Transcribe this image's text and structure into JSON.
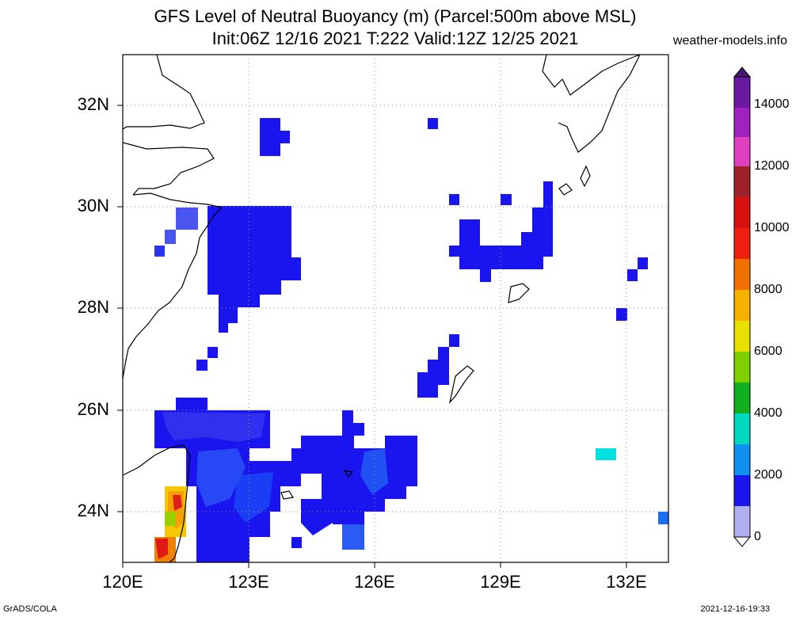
{
  "title": {
    "line1": "GFS Level of Neutral Buoyancy (m) (Parcel:500m above MSL)",
    "line2": "Init:06Z 12/16 2021 T:222 Valid:12Z 12/25 2021",
    "site": "weather-models.info"
  },
  "map": {
    "lon_range": [
      120,
      133
    ],
    "lat_range": [
      23,
      33
    ],
    "lat_ticks": [
      "32N",
      "30N",
      "28N",
      "26N",
      "24N"
    ],
    "lon_ticks": [
      "120E",
      "123E",
      "126E",
      "129E",
      "132E"
    ],
    "gridlines": "dotted"
  },
  "colorbar": {
    "labels": [
      "14000",
      "12000",
      "10000",
      "8000",
      "6000",
      "4000",
      "2000",
      "0"
    ],
    "min": 0,
    "max": 15000
  },
  "footer": {
    "left": "GrADS/COLA",
    "right": "2021-12-16-19:33"
  }
}
